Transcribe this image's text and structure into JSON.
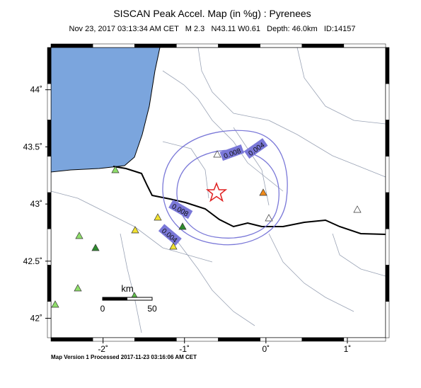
{
  "map": {
    "title": "SISCAN Peak Accel. Map (in %g) : Pyrenees",
    "subtitle": "Nov 23, 2017 03:13:34 AM CET   M 2.3   N43.11 W0.61   Depth: 46.0km   ID:14157",
    "xlim": [
      -2.64,
      1.47
    ],
    "ylim": [
      41.83,
      44.37
    ],
    "xticks": [
      {
        "value": -2,
        "label": "-2˚"
      },
      {
        "value": -1,
        "label": "-1˚"
      },
      {
        "value": 0,
        "label": "0˚"
      },
      {
        "value": 1,
        "label": "1˚"
      }
    ],
    "yticks": [
      {
        "value": 42,
        "label": "42˚"
      },
      {
        "value": 42.5,
        "label": "42.5˚"
      },
      {
        "value": 43,
        "label": "43˚"
      },
      {
        "value": 43.5,
        "label": "43.5˚"
      },
      {
        "value": 44,
        "label": "44˚"
      }
    ],
    "contour_labels": [
      "0.008",
      "0.004",
      "0.008",
      "0.004"
    ],
    "scale": {
      "unit": "km",
      "start": "0",
      "end": "50"
    },
    "footer": "Map Version 1 Processed 2017-11-23 03:16:06 AM CET"
  }
}
